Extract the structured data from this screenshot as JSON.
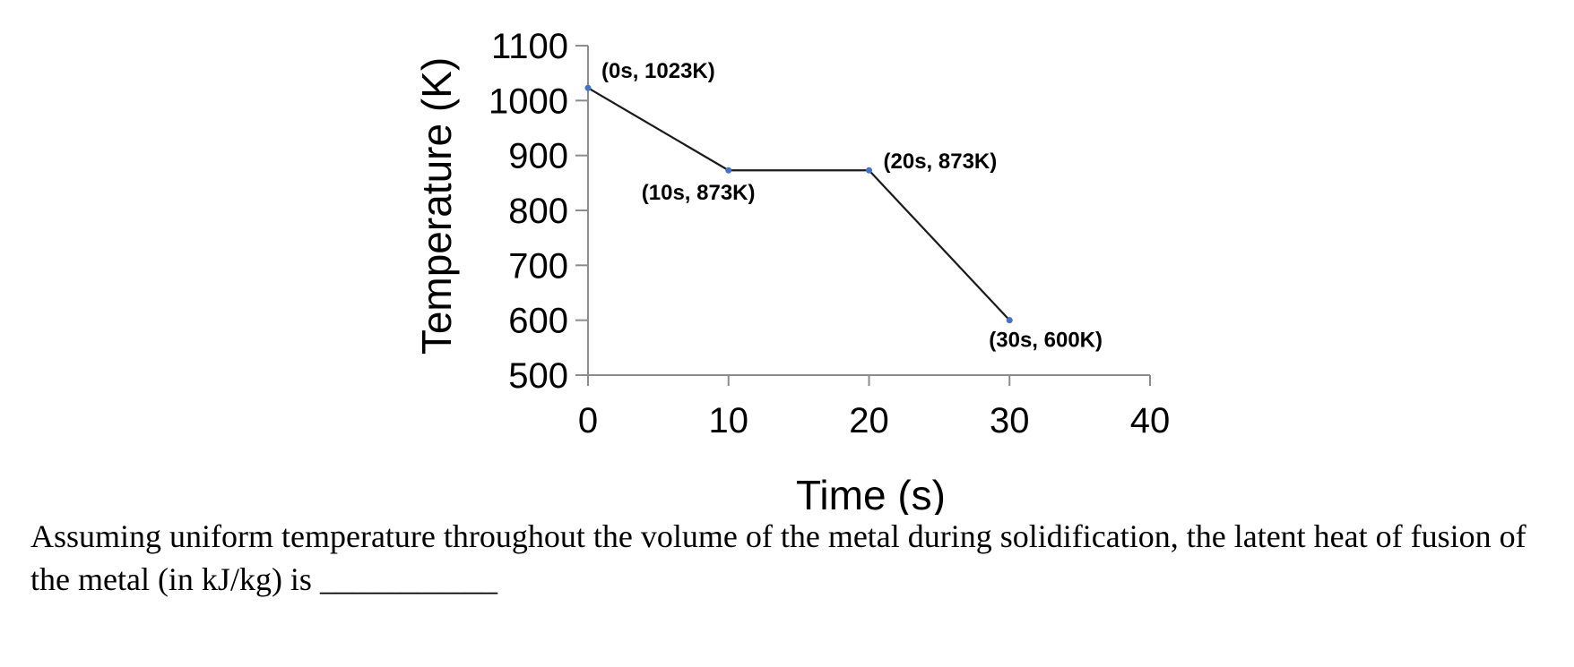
{
  "chart_data": {
    "type": "line",
    "xlabel": "Time (s)",
    "ylabel": "Temperature (K)",
    "xlim": [
      0,
      40
    ],
    "ylim": [
      500,
      1100
    ],
    "xticks": [
      0,
      10,
      20,
      30,
      40
    ],
    "yticks": [
      500,
      600,
      700,
      800,
      900,
      1000,
      1100
    ],
    "grid": false,
    "series": [
      {
        "x": [
          0,
          10,
          20,
          30
        ],
        "y": [
          1023,
          873,
          873,
          600
        ],
        "color": "#1a1a1a",
        "marker_color": "#4472c4"
      }
    ],
    "annotations": [
      "(0s, 1023K)",
      "(10s, 873K)",
      "(20s, 873K)",
      "(30s, 600K)"
    ]
  },
  "question": {
    "text": "Assuming uniform temperature throughout the volume of the metal during solidification, the latent heat of fusion of the metal (in kJ/kg) is ___________"
  }
}
